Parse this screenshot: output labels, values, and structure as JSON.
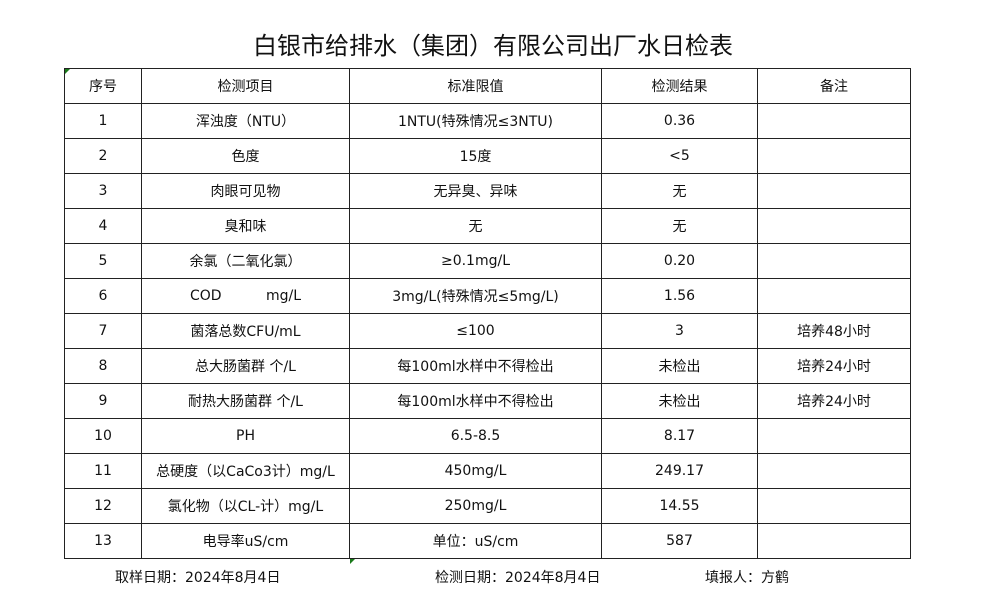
{
  "title": "白银市给排水（集团）有限公司出厂水日检表",
  "headers": [
    "序号",
    "检测项目",
    "标准限值",
    "检测结果",
    "备注"
  ],
  "rows": [
    [
      "1",
      "浑浊度（NTU）",
      "1NTU(特殊情况≤3NTU)",
      "0.36",
      ""
    ],
    [
      "2",
      "色度",
      "15度",
      "<5",
      ""
    ],
    [
      "3",
      "肉眼可见物",
      "无异臭、异味",
      "无",
      ""
    ],
    [
      "4",
      "臭和味",
      "无",
      "无",
      ""
    ],
    [
      "5",
      "余氯（二氧化氯）",
      "≥0.1mg/L",
      "0.20",
      ""
    ],
    [
      "6",
      "COD          mg/L",
      "3mg/L(特殊情况≤5mg/L)",
      "1.56",
      ""
    ],
    [
      "7",
      "菌落总数CFU/mL",
      "≤100",
      "3",
      "培养48小时"
    ],
    [
      "8",
      "总大肠菌群 个/L",
      "每100ml水样中不得检出",
      "未检出",
      "培养24小时"
    ],
    [
      "9",
      "耐热大肠菌群 个/L",
      "每100ml水样中不得检出",
      "未检出",
      "培养24小时"
    ],
    [
      "10",
      "PH",
      "6.5-8.5",
      "8.17",
      ""
    ],
    [
      "11",
      "总硬度（以CaCo3计）mg/L",
      "450mg/L",
      "249.17",
      ""
    ],
    [
      "12",
      "氯化物（以CL-计）mg/L",
      "250mg/L",
      "14.55",
      ""
    ],
    [
      "13",
      "电导率uS/cm",
      "单位：uS/cm",
      "587",
      ""
    ]
  ],
  "footer": {
    "sample_date": "取样日期：2024年8月4日",
    "test_date": "检测日期：2024年8月4日",
    "reporter": "填报人：方鹤"
  }
}
